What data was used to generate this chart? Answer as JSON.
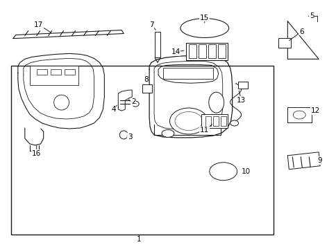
{
  "bg_color": "#ffffff",
  "line_color": "#1a1a1a",
  "fig_width": 4.85,
  "fig_height": 3.57,
  "dpi": 100
}
